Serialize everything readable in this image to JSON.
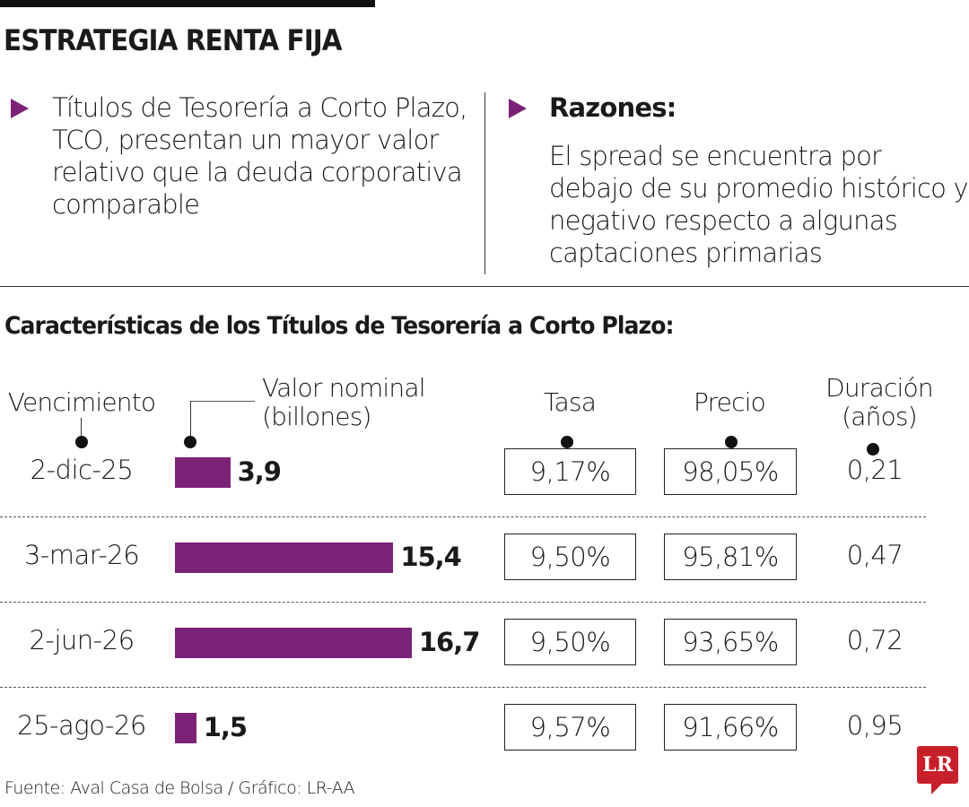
{
  "title": "ESTRATEGIA RENTA FIJA",
  "left_point": "Títulos de Tesorería a Corto Plazo, TCO, presentan un mayor valor relativo que la deuda corporativa comparable",
  "right_heading": "Razones:",
  "right_text": "El spread se encuentra por debajo de su promedio histórico y negativo respecto a algunas captaciones primarias",
  "subtitle": "Características de los Títulos de Tesorería a Corto Plazo:",
  "colors": {
    "accent": "#7b2277",
    "logo": "#c8202a"
  },
  "chart_data": {
    "type": "table",
    "columns": [
      "Vencimiento",
      "Valor nominal (billones)",
      "Tasa",
      "Precio",
      "Duración (años)"
    ],
    "headers": {
      "vencimiento": "Vencimiento",
      "valor_1": "Valor nominal",
      "valor_2": "(billones)",
      "tasa": "Tasa",
      "precio": "Precio",
      "duracion_1": "Duración",
      "duracion_2": "(años)"
    },
    "rows": [
      {
        "vencimiento": "2-dic-25",
        "valor": 3.9,
        "valor_label": "3,9",
        "tasa": "9,17%",
        "precio": "98,05%",
        "duracion": "0,21"
      },
      {
        "vencimiento": "3-mar-26",
        "valor": 15.4,
        "valor_label": "15,4",
        "tasa": "9,50%",
        "precio": "95,81%",
        "duracion": "0,47"
      },
      {
        "vencimiento": "2-jun-26",
        "valor": 16.7,
        "valor_label": "16,7",
        "tasa": "9,50%",
        "precio": "93,65%",
        "duracion": "0,72"
      },
      {
        "vencimiento": "25-ago-26",
        "valor": 1.5,
        "valor_label": "1,5",
        "tasa": "9,57%",
        "precio": "91,66%",
        "duracion": "0,95"
      }
    ]
  },
  "source": "Fuente: Aval Casa de Bolsa / Gráfico: LR-AA",
  "logo": "LR"
}
